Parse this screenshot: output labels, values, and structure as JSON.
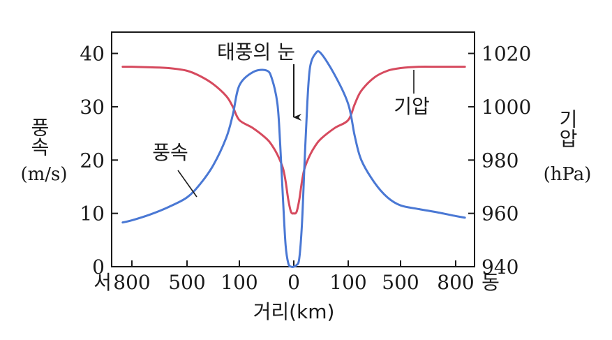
{
  "chart_data": {
    "type": "line",
    "x_tick_labels": [
      "800",
      "500",
      "100",
      "0",
      "100",
      "500",
      "800"
    ],
    "x_direction_left": "서",
    "x_direction_right": "동",
    "xlabel": "거리(km)",
    "left_axis": {
      "label": "풍속",
      "unit": "(m/s)",
      "ticks": [
        0,
        10,
        20,
        30,
        40
      ],
      "ylim": [
        0,
        44
      ]
    },
    "right_axis": {
      "label": "기압",
      "unit": "(hPa)",
      "ticks": [
        940,
        960,
        980,
        1000,
        1020
      ],
      "ylim": [
        940,
        1028
      ]
    },
    "series": [
      {
        "name": "풍속",
        "axis": "left",
        "color": "#4a78d4",
        "x": [
          -850,
          -800,
          -700,
          -600,
          -500,
          -400,
          -300,
          -200,
          -150,
          -100,
          -75,
          -50,
          -40,
          -30,
          -25,
          -20,
          -15,
          -10,
          -5,
          0,
          5,
          10,
          15,
          20,
          25,
          30,
          40,
          50,
          75,
          100,
          150,
          200,
          300,
          400,
          500,
          600,
          700,
          800,
          850
        ],
        "values": [
          8.3,
          8.7,
          9.8,
          11.2,
          13.0,
          15.5,
          19.0,
          24.2,
          28.5,
          34.0,
          36.5,
          36.8,
          35.2,
          30.5,
          23.0,
          13.0,
          4.0,
          0.6,
          0.0,
          0.0,
          0.3,
          1.5,
          8.0,
          20.0,
          31.0,
          37.5,
          40.0,
          40.0,
          36.0,
          30.5,
          24.5,
          20.0,
          15.8,
          13.0,
          11.5,
          10.8,
          10.2,
          9.5,
          9.2
        ]
      },
      {
        "name": "기압",
        "axis": "right",
        "color": "#d64a5e",
        "x": [
          -850,
          -800,
          -700,
          -600,
          -500,
          -400,
          -300,
          -200,
          -150,
          -100,
          -75,
          -50,
          -40,
          -30,
          -20,
          -15,
          -10,
          -5,
          0,
          5,
          10,
          15,
          20,
          30,
          40,
          50,
          75,
          100,
          150,
          200,
          300,
          400,
          500,
          600,
          700,
          800,
          850
        ],
        "values": [
          1015,
          1015,
          1014.8,
          1014.5,
          1013.5,
          1011.5,
          1008.5,
          1004,
          1000,
          995,
          992,
          988,
          985.5,
          982,
          977,
          972,
          965,
          960.5,
          960,
          960.5,
          965,
          972,
          977,
          982,
          985.5,
          988,
          992,
          995,
          1001,
          1006,
          1011,
          1013.5,
          1014.5,
          1015,
          1015,
          1015,
          1015
        ]
      }
    ],
    "annotations": [
      {
        "text": "태풍의 눈",
        "arrow_to": "x=0"
      },
      {
        "text": "기압",
        "leader_to": "pressure-curve"
      },
      {
        "text": "풍속",
        "leader_to": "wind-speed-curve"
      }
    ]
  }
}
